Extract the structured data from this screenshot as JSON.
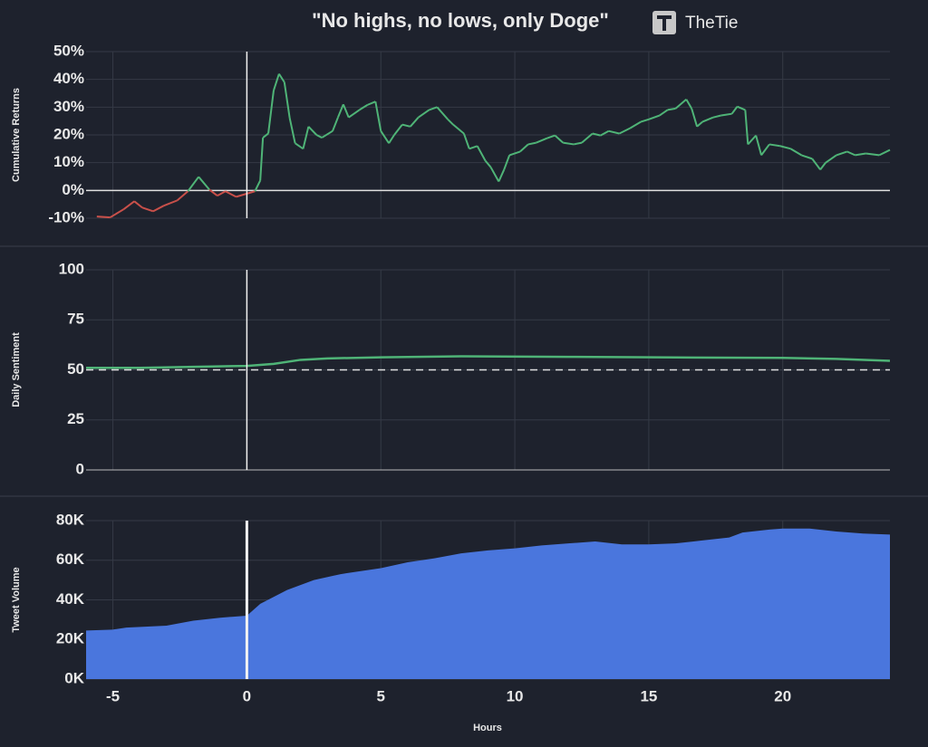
{
  "logo_text": "TheTie",
  "chart_data": [
    {
      "type": "line",
      "title": "\"No highs, no lows, only Doge\"",
      "y_label": "Cumulative Returns",
      "x": [
        -5.6,
        -5.1,
        -4.6,
        -4.2,
        -3.9,
        -3.5,
        -3.1,
        -2.6,
        -2.2,
        -1.8,
        -1.4,
        -1.1,
        -0.8,
        -0.4,
        0.3,
        0.5,
        0.6,
        0.8,
        1.0,
        1.2,
        1.4,
        1.6,
        1.8,
        2.1,
        2.3,
        2.6,
        2.8,
        3.2,
        3.4,
        3.6,
        3.8,
        4.2,
        4.5,
        4.8,
        5.0,
        5.3,
        5.5,
        5.8,
        6.1,
        6.4,
        6.8,
        7.1,
        7.5,
        7.7,
        8.1,
        8.3,
        8.6,
        8.9,
        9.1,
        9.4,
        9.6,
        9.8,
        10.2,
        10.5,
        10.8,
        11.2,
        11.5,
        11.8,
        12.2,
        12.5,
        12.9,
        13.2,
        13.5,
        13.9,
        14.3,
        14.7,
        15.0,
        15.4,
        15.7,
        16.0,
        16.4,
        16.6,
        16.8,
        17.0,
        17.4,
        17.7,
        18.1,
        18.3,
        18.6,
        18.7,
        19.0,
        19.2,
        19.5,
        19.9,
        20.3,
        20.7,
        21.1,
        21.4,
        21.6,
        22.0,
        22.4,
        22.7,
        23.1,
        23.6,
        24.0
      ],
      "values": [
        -9.4,
        -9.7,
        -6.8,
        -3.9,
        -6.2,
        -7.5,
        -5.5,
        -3.6,
        -0.3,
        4.9,
        0.3,
        -1.9,
        -0.3,
        -2.3,
        -0.3,
        3.6,
        19,
        20.5,
        36,
        42,
        39,
        26,
        17,
        15,
        23,
        20,
        19,
        21.4,
        26.3,
        31,
        26.3,
        29,
        30.8,
        32,
        21.4,
        17,
        20,
        23.7,
        23,
        26.3,
        29,
        30,
        25.6,
        23.7,
        20.5,
        15,
        16,
        10.7,
        8.4,
        3.2,
        7.5,
        12.7,
        14,
        16.6,
        17.2,
        18.8,
        19.8,
        17.2,
        16.6,
        17.2,
        20.5,
        19.8,
        21.4,
        20.5,
        22.4,
        24.7,
        25.6,
        27,
        29,
        29.5,
        32.8,
        29.5,
        23,
        24.7,
        26.3,
        27,
        27.6,
        30.2,
        29,
        16.6,
        19.8,
        12.7,
        16.6,
        16,
        15,
        12.7,
        11.4,
        7.5,
        10,
        12.7,
        14,
        12.7,
        13.3,
        12.7,
        14.6
      ],
      "color_above": "#4fb477",
      "color_below": "#c9504a",
      "ref_line": 0,
      "marker_x": 0,
      "xlim": [
        -6,
        24
      ],
      "ylim": [
        -10,
        50
      ],
      "yticks": [
        {
          "value": -10,
          "label": "-10%"
        },
        {
          "value": 0,
          "label": "0%"
        },
        {
          "value": 10,
          "label": "10%"
        },
        {
          "value": 20,
          "label": "20%"
        },
        {
          "value": 30,
          "label": "30%"
        },
        {
          "value": 40,
          "label": "40%"
        },
        {
          "value": 50,
          "label": "50%"
        }
      ],
      "grid": true
    },
    {
      "type": "line",
      "y_label": "Daily Sentiment",
      "x": [
        -6,
        -4,
        -2,
        0,
        1,
        2,
        3,
        5,
        8,
        12,
        16,
        20,
        22,
        24
      ],
      "values": [
        51,
        51,
        51.5,
        52,
        53,
        55,
        55.7,
        56.3,
        56.8,
        56.5,
        56.2,
        56,
        55.5,
        54.5
      ],
      "color": "#4fb477",
      "ref_line": 50,
      "marker_x": 0,
      "xlim": [
        -6,
        24
      ],
      "ylim": [
        0,
        100
      ],
      "yticks": [
        0,
        25,
        50,
        75,
        100
      ],
      "grid": true
    },
    {
      "type": "area",
      "y_label": "Tweet Volume",
      "x_label": "Hours",
      "x": [
        -6,
        -5,
        -4.5,
        -3,
        -2,
        -1,
        0,
        0.5,
        1.5,
        2.5,
        3.5,
        5,
        6,
        7,
        8,
        9,
        10,
        11,
        12,
        13,
        14,
        15,
        16,
        17,
        18,
        18.5,
        19.5,
        20,
        21,
        22,
        23,
        24
      ],
      "values": [
        24500,
        25000,
        26000,
        27000,
        29500,
        31000,
        32000,
        38000,
        45000,
        50000,
        53000,
        56000,
        59000,
        61000,
        63500,
        65000,
        66000,
        67500,
        68500,
        69500,
        68000,
        68000,
        68500,
        70000,
        71500,
        74000,
        75500,
        76000,
        76000,
        74500,
        73500,
        73000
      ],
      "color": "#4a76dd",
      "marker_x": 0,
      "xlim": [
        -6,
        24
      ],
      "ylim": [
        0,
        80000
      ],
      "xticks": [
        -5,
        0,
        5,
        10,
        15,
        20
      ],
      "yticks": [
        {
          "value": 0,
          "label": "0K"
        },
        {
          "value": 20000,
          "label": "20K"
        },
        {
          "value": 40000,
          "label": "40K"
        },
        {
          "value": 60000,
          "label": "60K"
        },
        {
          "value": 80000,
          "label": "80K"
        }
      ],
      "grid": true
    }
  ]
}
